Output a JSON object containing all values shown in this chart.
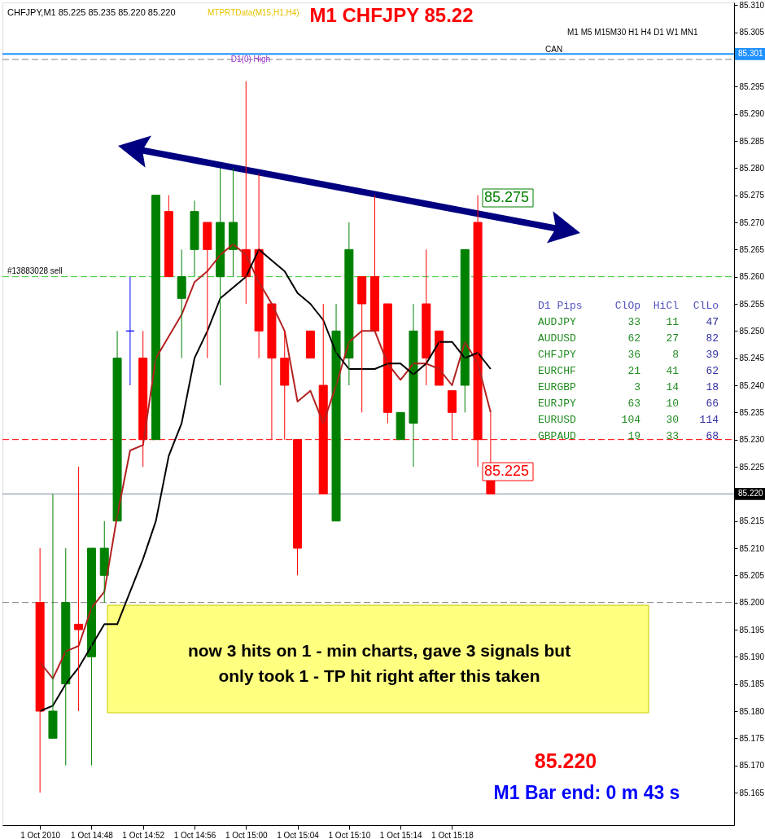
{
  "chart_data": {
    "type": "candlestick",
    "title": "M1 CHFJPY 85.22",
    "categories": [
      "1 Oct 2010",
      null,
      null,
      null,
      "1 Oct 14:48",
      null,
      null,
      null,
      "1 Oct 14:52",
      null,
      null,
      null,
      "1 Oct 14:56",
      null,
      null,
      null,
      "1 Oct 15:00",
      null,
      null,
      null,
      "1 Oct 15:04",
      null,
      null,
      null,
      "1 Oct 15:10",
      null,
      null,
      null,
      "1 Oct 15:14",
      null,
      null,
      null,
      "1 Oct 15:18",
      null,
      null,
      null
    ],
    "ohlc": [
      [
        85.2,
        85.21,
        85.165,
        85.18
      ],
      [
        85.175,
        85.22,
        85.175,
        85.18
      ],
      [
        85.185,
        85.21,
        85.17,
        85.2
      ],
      [
        85.196,
        85.225,
        85.18,
        85.195
      ],
      [
        85.19,
        85.21,
        85.17,
        85.21
      ],
      [
        85.205,
        85.215,
        85.2,
        85.21
      ],
      [
        85.215,
        85.25,
        85.215,
        85.245
      ],
      [
        85.25,
        85.26,
        85.24,
        85.25
      ],
      [
        85.245,
        85.25,
        85.225,
        85.23
      ],
      [
        85.23,
        85.275,
        85.23,
        85.275
      ],
      [
        85.272,
        85.275,
        85.26,
        85.26
      ],
      [
        85.256,
        85.265,
        85.245,
        85.26
      ],
      [
        85.265,
        85.274,
        85.26,
        85.272
      ],
      [
        85.27,
        85.27,
        85.245,
        85.265
      ],
      [
        85.26,
        85.28,
        85.24,
        85.27
      ],
      [
        85.265,
        85.28,
        85.26,
        85.27
      ],
      [
        85.265,
        85.296,
        85.255,
        85.26
      ],
      [
        85.265,
        85.279,
        85.245,
        85.25
      ],
      [
        85.255,
        85.255,
        85.23,
        85.245
      ],
      [
        85.245,
        85.25,
        85.23,
        85.24
      ],
      [
        85.23,
        85.23,
        85.205,
        85.21
      ],
      [
        85.25,
        85.25,
        85.245,
        85.245
      ],
      [
        85.24,
        85.255,
        85.22,
        85.22
      ],
      [
        85.215,
        85.255,
        85.215,
        85.25
      ],
      [
        85.245,
        85.27,
        85.24,
        85.265
      ],
      [
        85.26,
        85.26,
        85.235,
        85.255
      ],
      [
        85.26,
        85.275,
        85.25,
        85.25
      ],
      [
        85.255,
        85.255,
        85.233,
        85.235
      ],
      [
        85.23,
        85.235,
        85.23,
        85.235
      ],
      [
        85.233,
        85.255,
        85.225,
        85.25
      ],
      [
        85.255,
        85.265,
        85.24,
        85.245
      ],
      [
        85.25,
        85.25,
        85.24,
        85.24
      ],
      [
        85.239,
        85.239,
        85.23,
        85.235
      ],
      [
        85.24,
        85.265,
        85.235,
        85.265
      ],
      [
        85.27,
        85.275,
        85.225,
        85.23
      ],
      [
        85.225,
        85.235,
        85.22,
        85.22
      ]
    ],
    "colors": [
      "#ff0000",
      "#008000",
      "#008000",
      "#ff0000",
      "#008000",
      "#008000",
      "#008000",
      "#0000ff",
      "#ff0000",
      "#008000",
      "#ff0000",
      "#008000",
      "#008000",
      "#ff0000",
      "#008000",
      "#008000",
      "#ff0000",
      "#ff0000",
      "#ff0000",
      "#ff0000",
      "#ff0000",
      "#ff0000",
      "#ff0000",
      "#008000",
      "#008000",
      "#ff0000",
      "#ff0000",
      "#ff0000",
      "#008000",
      "#008000",
      "#ff0000",
      "#ff0000",
      "#ff0000",
      "#008000",
      "#ff0000",
      "#ff0000"
    ],
    "series": [
      {
        "type": "line",
        "color": "#b22222",
        "values": [
          85.189,
          85.186,
          85.191,
          85.192,
          85.199,
          85.202,
          85.216,
          85.228,
          85.229,
          85.245,
          85.249,
          85.253,
          85.259,
          85.261,
          85.264,
          85.266,
          85.264,
          85.259,
          85.255,
          85.25,
          85.237,
          85.239,
          85.233,
          85.24,
          85.248,
          85.25,
          85.25,
          85.244,
          85.241,
          85.244,
          85.244,
          85.243,
          85.24,
          85.248,
          85.244,
          85.235
        ]
      },
      {
        "type": "line",
        "color": "#000000",
        "values": [
          85.18,
          85.181,
          85.185,
          85.188,
          85.192,
          85.196,
          85.196,
          85.202,
          85.208,
          85.215,
          85.227,
          85.233,
          85.245,
          85.25,
          85.256,
          85.258,
          85.26,
          85.265,
          85.263,
          85.261,
          85.257,
          85.255,
          85.252,
          85.246,
          85.243,
          85.243,
          85.243,
          85.244,
          85.244,
          85.242,
          85.244,
          85.248,
          85.248,
          85.245,
          85.246,
          85.243
        ]
      }
    ],
    "ylim": [
      85.159,
      85.3105
    ],
    "yticks": [
      {
        "value": 85.165,
        "label": "85.165"
      },
      {
        "value": 85.17,
        "label": "85.170"
      },
      {
        "value": 85.175,
        "label": "85.175"
      },
      {
        "value": 85.18,
        "label": "85.180"
      },
      {
        "value": 85.185,
        "label": "85.185"
      },
      {
        "value": 85.19,
        "label": "85.190"
      },
      {
        "value": 85.195,
        "label": "85.195"
      },
      {
        "value": 85.2,
        "label": "85.200"
      },
      {
        "value": 85.205,
        "label": "85.205"
      },
      {
        "value": 85.21,
        "label": "85.210"
      },
      {
        "value": 85.215,
        "label": "85.215"
      },
      {
        "value": 85.225,
        "label": "85.225"
      },
      {
        "value": 85.23,
        "label": "85.230"
      },
      {
        "value": 85.235,
        "label": "85.235"
      },
      {
        "value": 85.24,
        "label": "85.240"
      },
      {
        "value": 85.245,
        "label": "85.245"
      },
      {
        "value": 85.25,
        "label": "85.250"
      },
      {
        "value": 85.255,
        "label": "85.255"
      },
      {
        "value": 85.26,
        "label": "85.260"
      },
      {
        "value": 85.265,
        "label": "85.265"
      },
      {
        "value": 85.27,
        "label": "85.270"
      },
      {
        "value": 85.275,
        "label": "85.275"
      },
      {
        "value": 85.28,
        "label": "85.280"
      },
      {
        "value": 85.285,
        "label": "85.285"
      },
      {
        "value": 85.29,
        "label": "85.290"
      },
      {
        "value": 85.295,
        "label": "85.295"
      },
      {
        "value": 85.305,
        "label": "85.305"
      },
      {
        "value": 85.31,
        "label": "85.310"
      }
    ],
    "ref_lines": [
      {
        "axis": "y",
        "value": 85.301,
        "label": "85.301",
        "color": "#1e90ff",
        "line_style": "solid"
      },
      {
        "axis": "y",
        "value": 85.3,
        "label": "D1(0) High",
        "color": "#808080",
        "line_style": "dashed"
      },
      {
        "axis": "y",
        "value": 85.26,
        "label": "#13883028 sell",
        "color": "#32cd32",
        "line_style": "dashed"
      },
      {
        "axis": "y",
        "value": 85.23,
        "color": "#ff0000",
        "line_style": "dashed"
      },
      {
        "axis": "y",
        "value": 85.22,
        "label": "85.220",
        "color": "#778899",
        "line_style": "solid"
      },
      {
        "axis": "y",
        "value": 85.2,
        "color": "#808080",
        "line_style": "dashed"
      }
    ],
    "annotations": [
      "CHFJPY,M1  85.225 85.235 85.220 85.220",
      "MTPRTData(M15,H1,H4)",
      "M1  M5  M15M30  H1  H4  D1  W1  MN1",
      "CAN",
      "D1 Pips  ClOp  HiCl  ClLo",
      "AUDJPY  33  11  47",
      "AUDUSD  62  27  82",
      "CHFJPY  36  8  39",
      "EURCHF  21  41  62",
      "EURGBP  3  14  18",
      "EURJPY  63  10  66",
      "EURUSD  104  30  114",
      "GBPAUD  19  33  68",
      "now 3 hits on 1 - min charts, gave 3 signals but\nonly took 1 - TP hit right after this taken",
      "85.220",
      "M1 Bar end: 0 m 43 s",
      "85.275",
      "85.225"
    ],
    "grid": false
  }
}
